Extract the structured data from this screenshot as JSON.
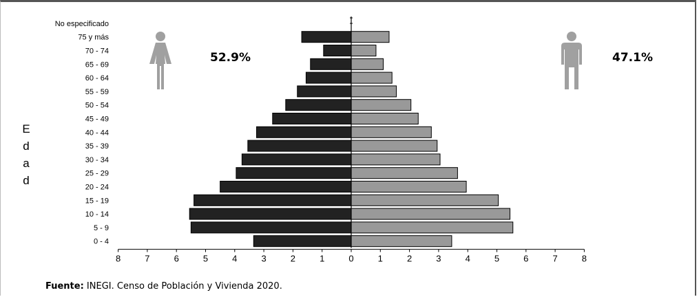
{
  "chart_data": {
    "type": "bar",
    "orientation": "horizontal",
    "subtype": "population-pyramid",
    "ylabel": "Edad",
    "categories": [
      "No especificado",
      "75 y más",
      "70 - 74",
      "65 - 69",
      "60 - 64",
      "55 - 59",
      "50 - 54",
      "45 - 49",
      "40 - 44",
      "35 - 39",
      "30 - 34",
      "25 - 29",
      "20 - 24",
      "15 - 19",
      "10 - 14",
      "5 - 9",
      "0 - 4"
    ],
    "series": [
      {
        "side": "left",
        "color": "#222222",
        "values": [
          0,
          1.7,
          0.95,
          1.4,
          1.55,
          1.85,
          2.25,
          2.7,
          3.25,
          3.55,
          3.75,
          3.95,
          4.5,
          5.4,
          5.55,
          5.5,
          3.35
        ]
      },
      {
        "side": "right",
        "color": "#999999",
        "values": [
          0,
          1.3,
          0.85,
          1.1,
          1.4,
          1.55,
          2.05,
          2.3,
          2.75,
          2.95,
          3.05,
          3.65,
          3.95,
          5.05,
          5.45,
          5.55,
          3.45
        ]
      }
    ],
    "xticks": [
      "8",
      "7",
      "6",
      "5",
      "4",
      "3",
      "2",
      "1",
      "0",
      "1",
      "2",
      "3",
      "4",
      "5",
      "6",
      "7",
      "8"
    ],
    "xlim": [
      -8,
      8
    ],
    "annotations": {
      "female_pct": "52.9%",
      "male_pct": "47.1%"
    },
    "female_icon": "woman-icon",
    "male_icon": "man-icon",
    "icon_color": "#a0a0a0"
  },
  "source": {
    "label": "Fuente:",
    "text": " INEGI. Censo de Población y Vivienda 2020."
  }
}
